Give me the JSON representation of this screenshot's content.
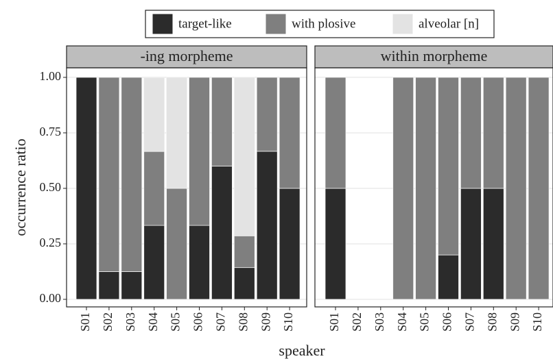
{
  "chart_data": [
    {
      "type": "bar",
      "stacked": true,
      "title": "-ing morpheme",
      "x_label": "speaker",
      "y_label": "occurrence ratio",
      "categories": [
        "S01",
        "S02",
        "S03",
        "S04",
        "S05",
        "S06",
        "S07",
        "S08",
        "S09",
        "S10"
      ],
      "series": [
        {
          "name": "target-like",
          "color": "#2b2b2b",
          "values": [
            1,
            0.125,
            0.125,
            0.333,
            0,
            0.333,
            0.6,
            0.143,
            0.667,
            0.5
          ]
        },
        {
          "name": "with plosive",
          "color": "#7f7f7f",
          "values": [
            0,
            0.875,
            0.875,
            0.333,
            0.5,
            0.667,
            0.4,
            0.143,
            0.333,
            0.5
          ]
        },
        {
          "name": "alveolar [n]",
          "color": "#e3e3e3",
          "values": [
            0,
            0,
            0,
            0.333,
            0.5,
            0,
            0,
            0.714,
            0,
            0
          ]
        }
      ],
      "ylim": [
        -0.034,
        1.043
      ],
      "yticks": [
        {
          "value": 0,
          "label": "0.00"
        },
        {
          "value": 0.25,
          "label": "0.25"
        },
        {
          "value": 0.5,
          "label": "0.50"
        },
        {
          "value": 0.75,
          "label": "0.75"
        },
        {
          "value": 1,
          "label": "1.00"
        }
      ],
      "grid": true,
      "legend": "top"
    },
    {
      "type": "bar",
      "stacked": true,
      "title": "within morpheme",
      "categories": [
        "S01",
        "S02",
        "S03",
        "S04",
        "S05",
        "S06",
        "S07",
        "S08",
        "S09",
        "S10"
      ],
      "series": [
        {
          "name": "target-like",
          "color": "#2b2b2b",
          "values": [
            0.5,
            null,
            null,
            0,
            0,
            0.2,
            0.5,
            0.5,
            0,
            0
          ]
        },
        {
          "name": "with plosive",
          "color": "#7f7f7f",
          "values": [
            0.5,
            null,
            null,
            1,
            1,
            0.8,
            0.5,
            0.5,
            1,
            1
          ]
        },
        {
          "name": "alveolar [n]",
          "color": "#e3e3e3",
          "values": [
            0,
            null,
            null,
            0,
            0,
            0,
            0,
            0,
            0,
            0
          ]
        }
      ],
      "ylim": [
        -0.034,
        1.043
      ],
      "yticks": [
        0,
        0.25,
        0.5,
        0.75,
        1
      ],
      "grid": true
    }
  ]
}
